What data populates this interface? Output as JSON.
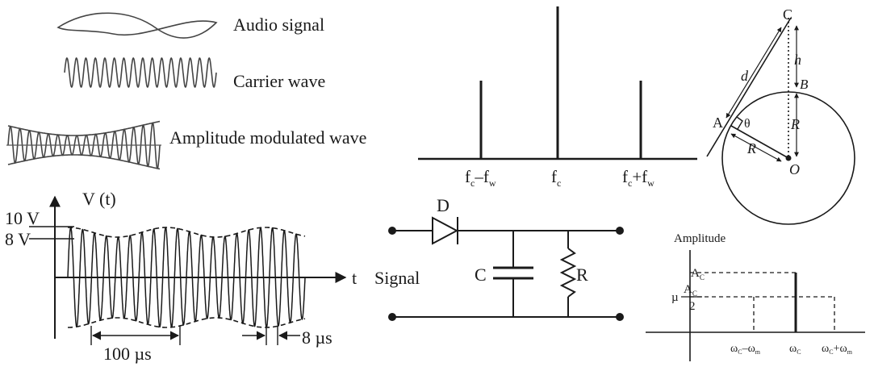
{
  "waves": {
    "audio_label": "Audio signal",
    "carrier_label": "Carrier wave",
    "am_label": "Amplitude modulated wave"
  },
  "spectrum": {
    "lower_label_main": "f",
    "lower_label_sub1": "c",
    "lower_label_mid": "–f",
    "lower_label_sub2": "w",
    "center_label_main": "f",
    "center_label_sub": "c",
    "upper_label_main": "f",
    "upper_label_sub1": "c",
    "upper_label_mid": "+f",
    "upper_label_sub2": "w"
  },
  "geometry": {
    "point_c": "C",
    "point_a": "A",
    "point_b": "B",
    "point_o": "O",
    "label_d": "d",
    "label_h": "h",
    "label_r_vertical": "R",
    "label_r_radius": "R",
    "label_theta": "θ"
  },
  "vt_graph": {
    "axis_label": "V (t)",
    "time_label": "t",
    "level_10": "10 V",
    "level_8": "8 V",
    "period_label": "100 µs",
    "carrier_period_label": "8 µs"
  },
  "circuit": {
    "diode_label": "D",
    "capacitor_label": "C",
    "resistor_label": "R",
    "input_label": "Signal"
  },
  "amplitude_spectrum": {
    "y_label": "Amplitude",
    "ac_main": "A",
    "ac_sub": "C",
    "mu_prefix": "µ",
    "mu_num_main": "A",
    "mu_num_sub": "C",
    "mu_den": "2",
    "omega_lower_main": "ω",
    "omega_lower_sub1": "C",
    "omega_lower_mid": "–ω",
    "omega_lower_sub2": "m",
    "omega_center_main": "ω",
    "omega_center_sub": "C",
    "omega_upper_main": "ω",
    "omega_upper_sub1": "C",
    "omega_upper_mid": "+ω",
    "omega_upper_sub2": "m"
  }
}
